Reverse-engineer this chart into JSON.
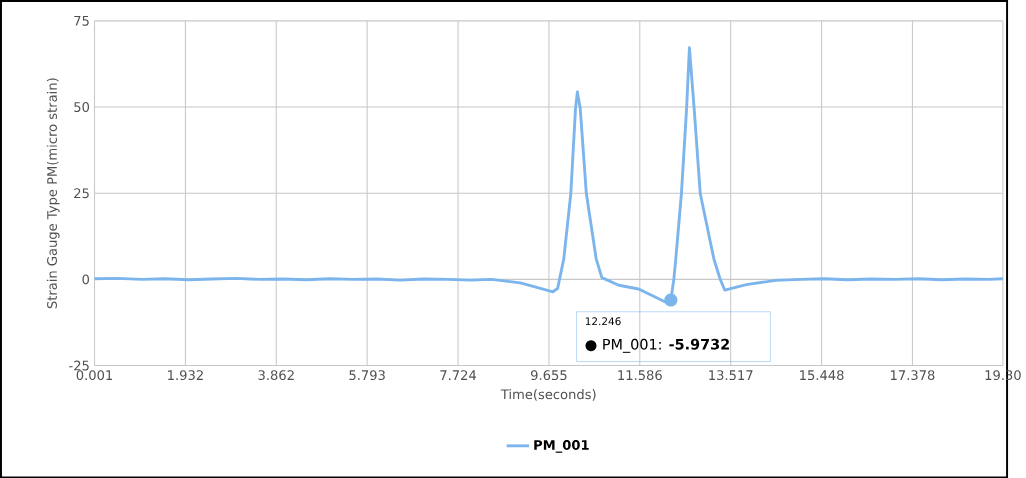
{
  "chart_data": {
    "type": "line",
    "xlabel": "Time(seconds)",
    "ylabel": "Strain Gauge Type PM(micro strain)",
    "xlim": [
      0.001,
      19.3
    ],
    "ylim": [
      -25,
      75
    ],
    "xticks": [
      0.001,
      1.932,
      3.862,
      5.793,
      7.724,
      9.655,
      11.586,
      13.517,
      15.448,
      17.378,
      {
        "value": 19.3,
        "label": "19.30"
      }
    ],
    "yticks": [
      -25,
      0,
      25,
      50,
      75
    ],
    "grid": true,
    "legend": "bottom",
    "annotations": [
      "12.246",
      "● PM_001: **-5.9732**"
    ],
    "series": [
      {
        "name": "PM_001",
        "color": "#7cb5ec",
        "x": [
          0.001,
          0.5,
          1.0,
          1.5,
          2.0,
          2.5,
          3.0,
          3.5,
          4.0,
          4.5,
          5.0,
          5.5,
          6.0,
          6.5,
          7.0,
          7.5,
          8.0,
          8.43,
          9.05,
          9.57,
          9.74,
          9.84,
          9.97,
          10.12,
          10.22,
          10.26,
          10.32,
          10.45,
          10.66,
          10.78,
          11.14,
          11.56,
          12.12,
          12.246,
          12.31,
          12.35,
          12.47,
          12.58,
          12.64,
          12.74,
          12.87,
          13.16,
          13.29,
          13.39,
          13.85,
          14.47,
          15.0,
          15.5,
          16.0,
          16.5,
          17.0,
          17.5,
          18.0,
          18.5,
          19.0,
          19.3
        ],
        "values": [
          0.2,
          0.3,
          0,
          0.2,
          -0.1,
          0.1,
          0.3,
          0,
          0.1,
          -0.1,
          0.2,
          0,
          0.1,
          -0.2,
          0.1,
          0,
          -0.2,
          0,
          -1,
          -3,
          -3.6,
          -2.6,
          5.9,
          24.9,
          49.6,
          54.4,
          49.6,
          24.9,
          5.9,
          0.5,
          -1.7,
          -2.8,
          -6.5,
          -5.9732,
          0.2,
          5.9,
          24.9,
          49.6,
          67.2,
          49.6,
          24.9,
          5.9,
          0.2,
          -3.1,
          -1.5,
          -0.3,
          0,
          0.2,
          -0.1,
          0.1,
          0,
          0.2,
          -0.1,
          0.1,
          0,
          0.2
        ]
      }
    ]
  }
}
